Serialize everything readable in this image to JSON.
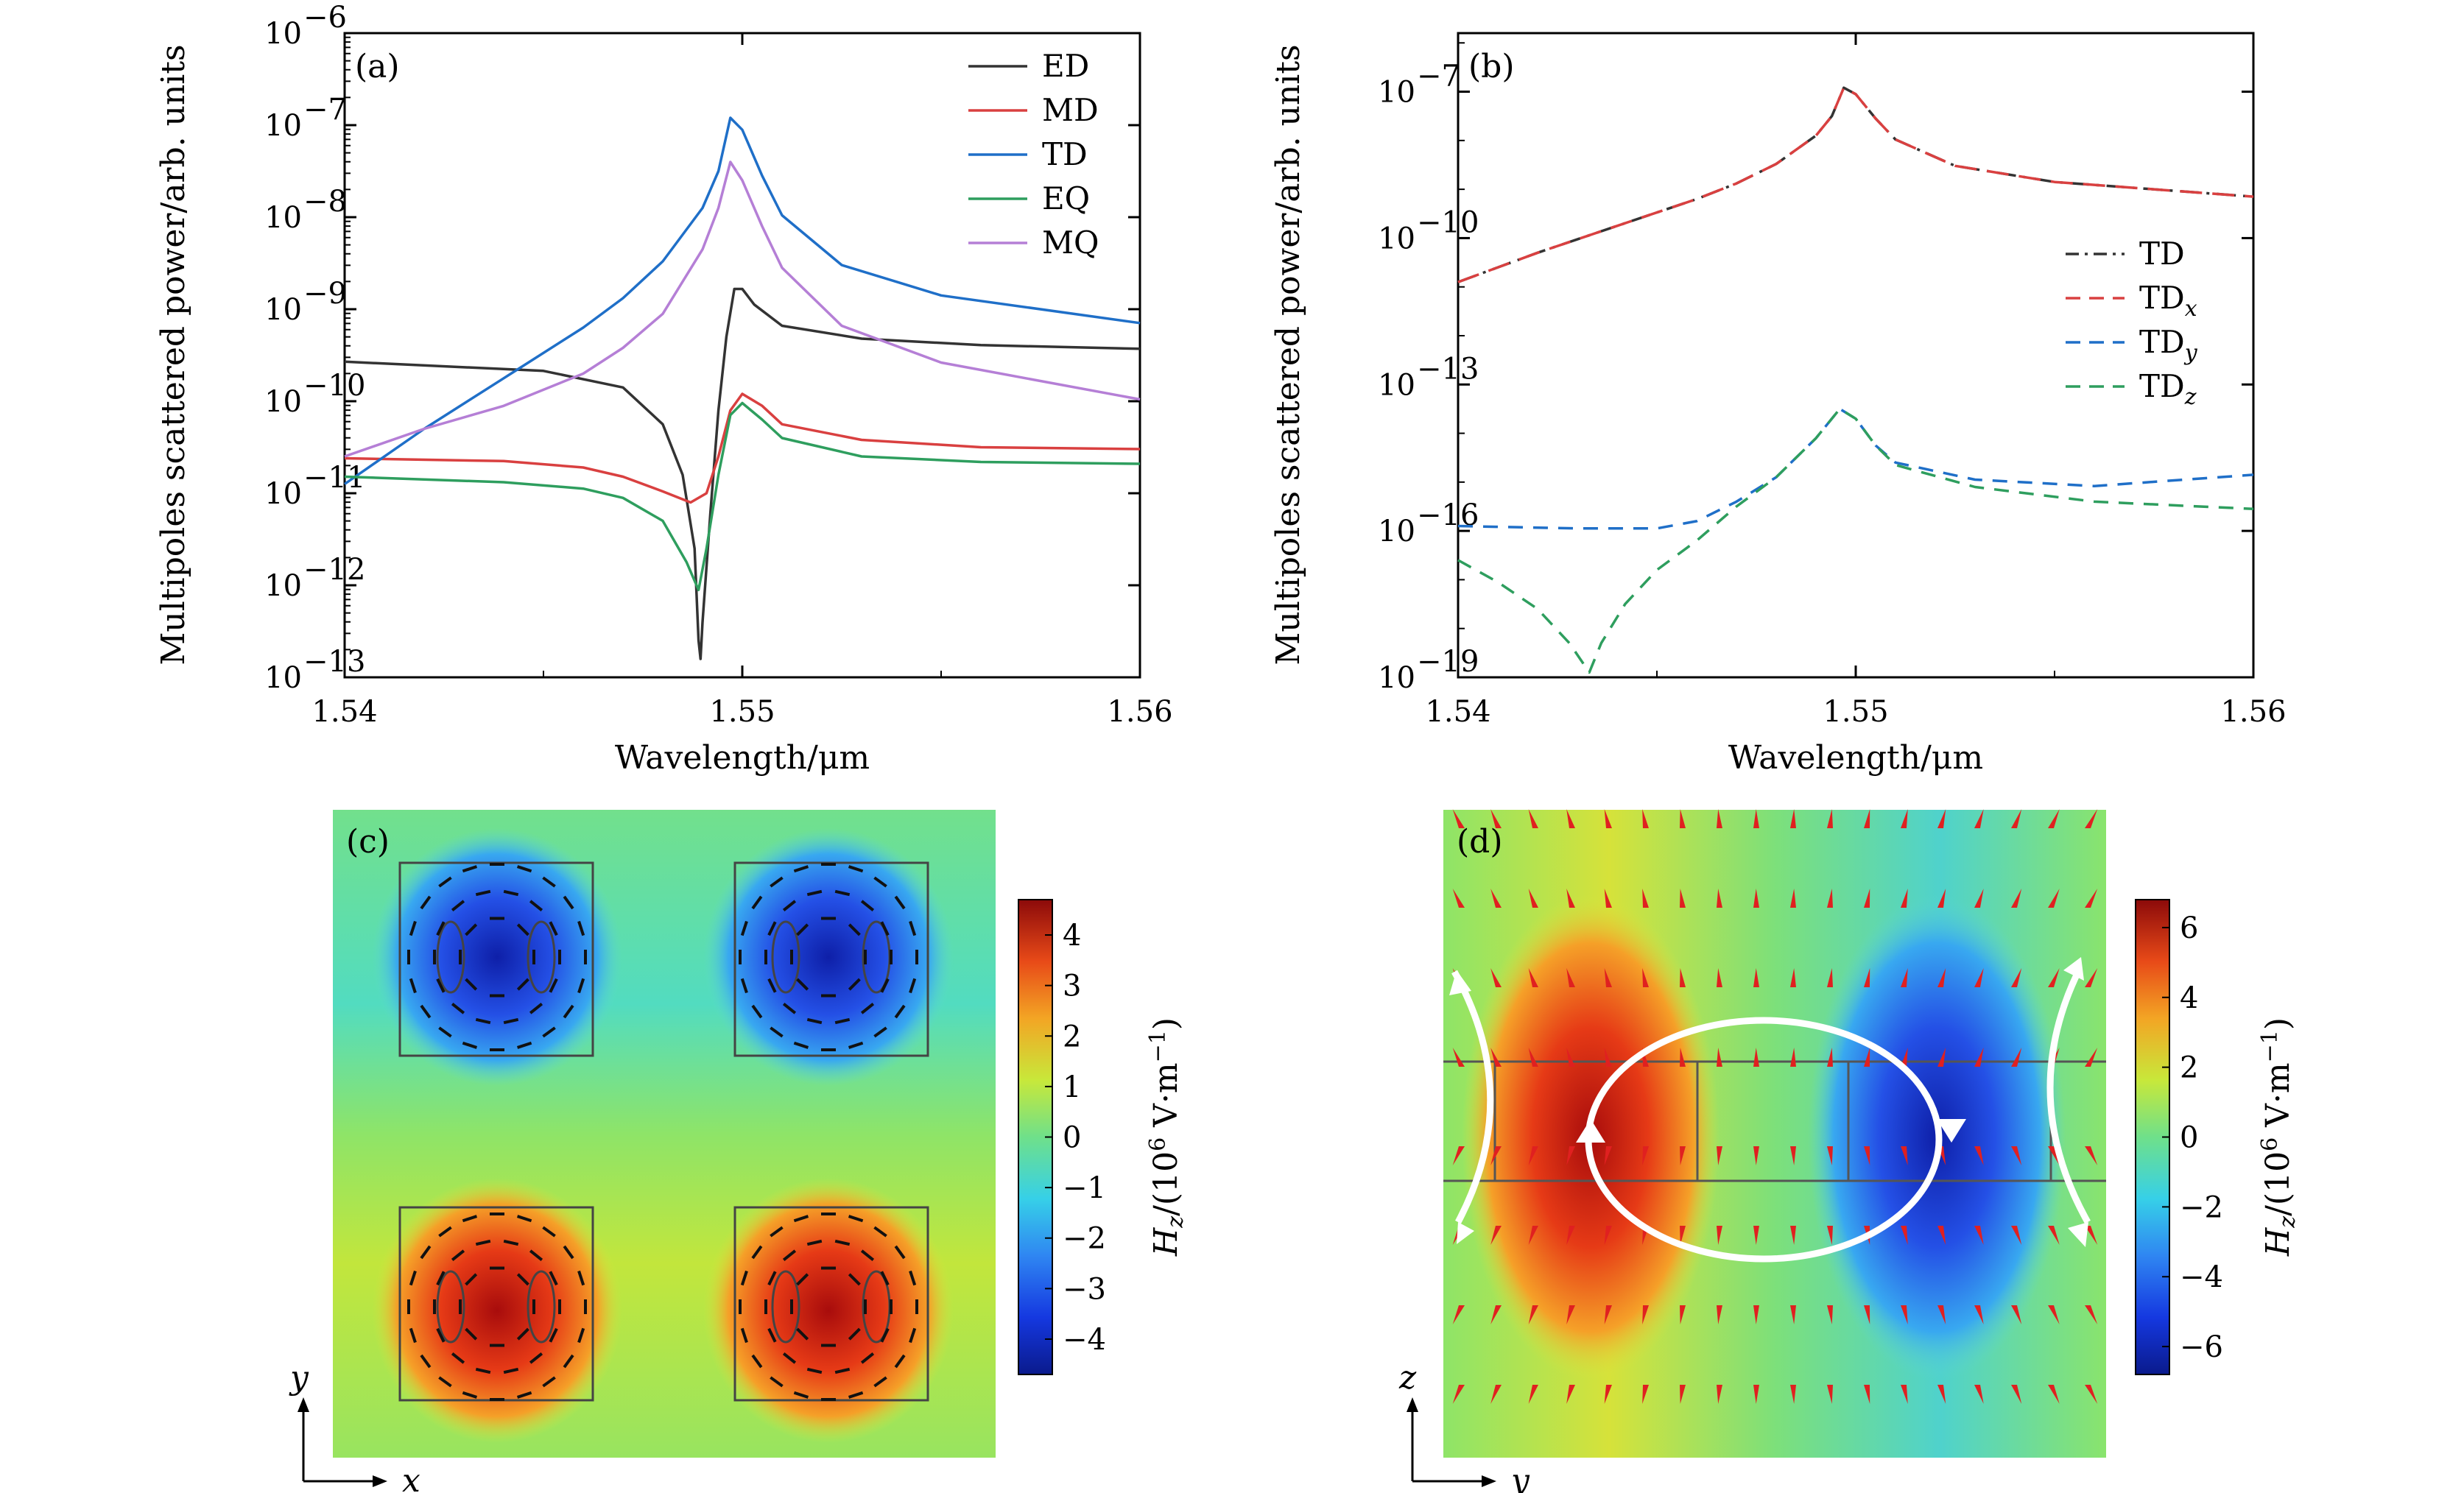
{
  "panel_labels": [
    "(a)",
    "(b)",
    "(c)",
    "(d)"
  ],
  "colors": {
    "ED": "#333333",
    "MD": "#d94040",
    "TD": "#1f6fc8",
    "EQ": "#2e9e5e",
    "MQ": "#b57fd6",
    "TDx": "#d94040",
    "TDy": "#1f6fc8",
    "TDz": "#2e9e5e"
  },
  "chart_data": [
    {
      "type": "line",
      "label": "(a)",
      "xlabel": "Wavelength/μm",
      "ylabel": "Multipoles scattered power/arb. units",
      "xlim": [
        1.54,
        1.56
      ],
      "ylim_exponent": [
        -13,
        -6
      ],
      "yscale": "log",
      "x_ticks": [
        "1.54",
        "1.55",
        "1.56"
      ],
      "y_ticks": [
        {
          "mant": "10",
          "exp": "−6"
        },
        {
          "mant": "10",
          "exp": "−7"
        },
        {
          "mant": "10",
          "exp": "−8"
        },
        {
          "mant": "10",
          "exp": "−9"
        },
        {
          "mant": "10",
          "exp": "−10"
        },
        {
          "mant": "10",
          "exp": "−11"
        },
        {
          "mant": "10",
          "exp": "−12"
        },
        {
          "mant": "10",
          "exp": "−13"
        }
      ],
      "legend_position": "top-right",
      "series": [
        {
          "name": "ED",
          "color_key": "ED",
          "dash": "solid",
          "points": [
            [
              1.54,
              -9.57
            ],
            [
              1.545,
              -9.67
            ],
            [
              1.547,
              -9.85
            ],
            [
              1.548,
              -10.25
            ],
            [
              1.5485,
              -10.8
            ],
            [
              1.5488,
              -11.6
            ],
            [
              1.5489,
              -12.6
            ],
            [
              1.54895,
              -12.8
            ],
            [
              1.549,
              -12.4
            ],
            [
              1.5492,
              -11.2
            ],
            [
              1.5494,
              -10.1
            ],
            [
              1.5496,
              -9.3
            ],
            [
              1.5498,
              -8.78
            ],
            [
              1.55,
              -8.78
            ],
            [
              1.5503,
              -8.95
            ],
            [
              1.551,
              -9.18
            ],
            [
              1.553,
              -9.32
            ],
            [
              1.556,
              -9.39
            ],
            [
              1.56,
              -9.43
            ]
          ]
        },
        {
          "name": "MD",
          "color_key": "MD",
          "dash": "solid",
          "points": [
            [
              1.54,
              -10.62
            ],
            [
              1.544,
              -10.65
            ],
            [
              1.546,
              -10.72
            ],
            [
              1.547,
              -10.82
            ],
            [
              1.548,
              -10.98
            ],
            [
              1.5487,
              -11.1
            ],
            [
              1.5491,
              -11.0
            ],
            [
              1.5494,
              -10.6
            ],
            [
              1.5497,
              -10.1
            ],
            [
              1.55,
              -9.92
            ],
            [
              1.5505,
              -10.05
            ],
            [
              1.551,
              -10.25
            ],
            [
              1.553,
              -10.42
            ],
            [
              1.556,
              -10.5
            ],
            [
              1.56,
              -10.52
            ]
          ]
        },
        {
          "name": "TD",
          "color_key": "TD",
          "dash": "solid",
          "points": [
            [
              1.54,
              -10.9
            ],
            [
              1.542,
              -10.3
            ],
            [
              1.544,
              -9.75
            ],
            [
              1.546,
              -9.2
            ],
            [
              1.547,
              -8.88
            ],
            [
              1.548,
              -8.48
            ],
            [
              1.549,
              -7.9
            ],
            [
              1.5494,
              -7.5
            ],
            [
              1.5497,
              -6.92
            ],
            [
              1.55,
              -7.05
            ],
            [
              1.5505,
              -7.55
            ],
            [
              1.551,
              -7.98
            ],
            [
              1.5525,
              -8.52
            ],
            [
              1.555,
              -8.85
            ],
            [
              1.56,
              -9.15
            ]
          ]
        },
        {
          "name": "EQ",
          "color_key": "EQ",
          "dash": "solid",
          "points": [
            [
              1.54,
              -10.82
            ],
            [
              1.544,
              -10.88
            ],
            [
              1.546,
              -10.95
            ],
            [
              1.547,
              -11.05
            ],
            [
              1.548,
              -11.3
            ],
            [
              1.5486,
              -11.75
            ],
            [
              1.5489,
              -12.05
            ],
            [
              1.5491,
              -11.6
            ],
            [
              1.5494,
              -10.8
            ],
            [
              1.5497,
              -10.15
            ],
            [
              1.55,
              -10.02
            ],
            [
              1.5505,
              -10.2
            ],
            [
              1.551,
              -10.4
            ],
            [
              1.553,
              -10.6
            ],
            [
              1.556,
              -10.66
            ],
            [
              1.56,
              -10.68
            ]
          ]
        },
        {
          "name": "MQ",
          "color_key": "MQ",
          "dash": "solid",
          "points": [
            [
              1.54,
              -10.6
            ],
            [
              1.542,
              -10.3
            ],
            [
              1.544,
              -10.05
            ],
            [
              1.546,
              -9.7
            ],
            [
              1.547,
              -9.42
            ],
            [
              1.548,
              -9.05
            ],
            [
              1.549,
              -8.35
            ],
            [
              1.5494,
              -7.9
            ],
            [
              1.5497,
              -7.4
            ],
            [
              1.55,
              -7.6
            ],
            [
              1.5505,
              -8.1
            ],
            [
              1.551,
              -8.55
            ],
            [
              1.5525,
              -9.18
            ],
            [
              1.555,
              -9.58
            ],
            [
              1.56,
              -9.98
            ]
          ]
        }
      ]
    },
    {
      "type": "line",
      "label": "(b)",
      "xlabel": "Wavelength/μm",
      "ylabel": "Multipoles scattered power/arb. units",
      "xlim": [
        1.54,
        1.56
      ],
      "ylim_exponent": [
        -19,
        -5.8
      ],
      "yscale": "log",
      "x_ticks": [
        "1.54",
        "1.55",
        "1.56"
      ],
      "y_ticks": [
        {
          "mant": "10",
          "exp": "−7"
        },
        {
          "mant": "10",
          "exp": "−10"
        },
        {
          "mant": "10",
          "exp": "−13"
        },
        {
          "mant": "10",
          "exp": "−16"
        },
        {
          "mant": "10",
          "exp": "−19"
        }
      ],
      "legend_position": "center-right",
      "series": [
        {
          "name": "TD",
          "color_key": "ED",
          "dash": "dashdot",
          "points": [
            [
              1.54,
              -10.9
            ],
            [
              1.542,
              -10.3
            ],
            [
              1.544,
              -9.75
            ],
            [
              1.546,
              -9.2
            ],
            [
              1.547,
              -8.88
            ],
            [
              1.548,
              -8.48
            ],
            [
              1.549,
              -7.9
            ],
            [
              1.5494,
              -7.5
            ],
            [
              1.5497,
              -6.92
            ],
            [
              1.55,
              -7.05
            ],
            [
              1.5505,
              -7.55
            ],
            [
              1.551,
              -7.98
            ],
            [
              1.5525,
              -8.52
            ],
            [
              1.555,
              -8.85
            ],
            [
              1.56,
              -9.15
            ]
          ]
        },
        {
          "name": "TDx",
          "name_sub": "x",
          "color_key": "TDx",
          "dash": "longdash",
          "points": [
            [
              1.54,
              -10.9
            ],
            [
              1.542,
              -10.3
            ],
            [
              1.544,
              -9.75
            ],
            [
              1.546,
              -9.2
            ],
            [
              1.547,
              -8.88
            ],
            [
              1.548,
              -8.48
            ],
            [
              1.549,
              -7.9
            ],
            [
              1.5494,
              -7.5
            ],
            [
              1.5497,
              -6.92
            ],
            [
              1.55,
              -7.05
            ],
            [
              1.5505,
              -7.55
            ],
            [
              1.551,
              -7.98
            ],
            [
              1.5525,
              -8.52
            ],
            [
              1.555,
              -8.85
            ],
            [
              1.56,
              -9.15
            ]
          ]
        },
        {
          "name": "TDy",
          "name_sub": "y",
          "color_key": "TDy",
          "dash": "dash",
          "points": [
            [
              1.54,
              -15.9
            ],
            [
              1.543,
              -15.95
            ],
            [
              1.545,
              -15.95
            ],
            [
              1.546,
              -15.8
            ],
            [
              1.547,
              -15.4
            ],
            [
              1.548,
              -14.9
            ],
            [
              1.549,
              -14.1
            ],
            [
              1.5496,
              -13.5
            ],
            [
              1.55,
              -13.7
            ],
            [
              1.5505,
              -14.25
            ],
            [
              1.551,
              -14.6
            ],
            [
              1.553,
              -14.95
            ],
            [
              1.556,
              -15.08
            ],
            [
              1.56,
              -14.85
            ]
          ]
        },
        {
          "name": "TDz",
          "name_sub": "z",
          "color_key": "TDz",
          "dash": "dash",
          "points": [
            [
              1.54,
              -16.6
            ],
            [
              1.541,
              -17.05
            ],
            [
              1.542,
              -17.6
            ],
            [
              1.5428,
              -18.3
            ],
            [
              1.5433,
              -18.9
            ],
            [
              1.5436,
              -18.3
            ],
            [
              1.5442,
              -17.5
            ],
            [
              1.545,
              -16.8
            ],
            [
              1.546,
              -16.2
            ],
            [
              1.547,
              -15.5
            ],
            [
              1.548,
              -14.9
            ],
            [
              1.549,
              -14.1
            ],
            [
              1.5496,
              -13.5
            ],
            [
              1.55,
              -13.7
            ],
            [
              1.5505,
              -14.25
            ],
            [
              1.551,
              -14.65
            ],
            [
              1.553,
              -15.1
            ],
            [
              1.556,
              -15.4
            ],
            [
              1.56,
              -15.55
            ]
          ]
        }
      ]
    }
  ],
  "field_c": {
    "label": "(c)",
    "colorbar_label": "H",
    "colorbar_sub": "z",
    "colorbar_unit_pre": "/(10",
    "colorbar_unit_exp": "6",
    "colorbar_unit_post": " V·m",
    "colorbar_unit_exp2": "−1",
    "colorbar_unit_close": ")",
    "colorbar_ticks": [
      "4",
      "3",
      "2",
      "1",
      "0",
      "−1",
      "−2",
      "−3",
      "−4"
    ],
    "colorbar_range": [
      -4.7,
      4.7
    ],
    "axis_vertical": "y",
    "axis_horizontal": "x"
  },
  "field_d": {
    "label": "(d)",
    "colorbar_label": "H",
    "colorbar_sub": "z",
    "colorbar_unit_pre": "/(10",
    "colorbar_unit_exp": "6",
    "colorbar_unit_post": " V·m",
    "colorbar_unit_exp2": "−1",
    "colorbar_unit_close": ")",
    "colorbar_ticks": [
      "6",
      "4",
      "2",
      "0",
      "−2",
      "−4",
      "−6"
    ],
    "colorbar_range": [
      -6.8,
      6.8
    ],
    "axis_vertical": "z",
    "axis_horizontal": "y"
  }
}
